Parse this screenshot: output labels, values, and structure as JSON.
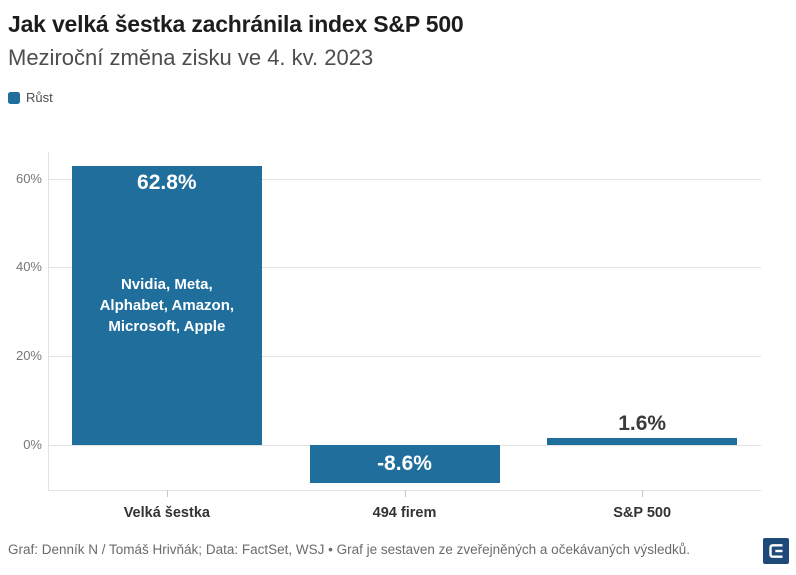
{
  "chart_data": {
    "type": "bar",
    "title": "Jak velká šestka zachránila index S&P 500",
    "subtitle": "Meziroční změna zisku ve 4. kv. 2023",
    "xlabel": "",
    "ylabel": "",
    "categories": [
      "Velká šestka",
      "494 firem",
      "S&P 500"
    ],
    "values": [
      62.8,
      -8.6,
      1.6
    ],
    "value_labels": [
      "62.8%",
      "-8.6%",
      "1.6%"
    ],
    "value_label_styles": [
      {
        "position": "inside-top",
        "color": "#ffffff"
      },
      {
        "position": "inside-center",
        "color": "#ffffff"
      },
      {
        "position": "above",
        "color": "#3a3a3a"
      }
    ],
    "bar_annotations": [
      {
        "bar": "Velká šestka",
        "lines": [
          "Nvidia, Meta,",
          "Alphabet, Amazon,",
          "Microsoft, Apple"
        ],
        "color": "#ffffff"
      }
    ],
    "bar_color": "#1f6e9c",
    "legend": {
      "label": "Růst",
      "position": "top-left",
      "swatch_color": "#1f6e9c"
    },
    "y_axis": {
      "ticks": [
        0,
        20,
        40,
        60
      ],
      "tick_labels": [
        "0%",
        "20%",
        "40%",
        "60%"
      ],
      "ylim": [
        -10.2,
        66
      ],
      "unit": "%",
      "grid": true
    }
  },
  "footer": {
    "text": "Graf: Denník N / Tomáš Hrivňák; Data: FactSet, WSJ • Graf je sestaven ze zveřejněných a očekávaných výsledků."
  },
  "logo": {
    "name": "dennik-e-logo",
    "background": "#1d4a78",
    "glyph_color": "#ffffff"
  }
}
